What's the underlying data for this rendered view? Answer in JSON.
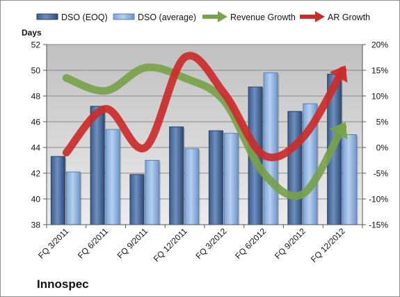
{
  "company_label": "Innospec",
  "chart_data": {
    "type": "bar",
    "categories": [
      "FQ 3/2011",
      "FQ 6/2011",
      "FQ 9/2011",
      "FQ 12/2011",
      "FQ 3/2012",
      "FQ 6/2012",
      "FQ 9/2012",
      "FQ 12/2012"
    ],
    "ylabel": "Days",
    "ylim": [
      38,
      52
    ],
    "yticks": [
      "38",
      "40",
      "42",
      "44",
      "46",
      "48",
      "50",
      "52"
    ],
    "y2lim": [
      -15,
      20
    ],
    "y2ticks": [
      "-15%",
      "-10%",
      "-5%",
      "0%",
      "5%",
      "10%",
      "15%",
      "20%"
    ],
    "legend_position": "top",
    "grid": true,
    "series": [
      {
        "name": "DSO (EOQ)",
        "kind": "bar",
        "axis": "left",
        "color": "#4f6f9f",
        "values": [
          43.3,
          47.2,
          41.9,
          45.6,
          45.3,
          48.7,
          46.8,
          49.7
        ]
      },
      {
        "name": "DSO (average)",
        "kind": "bar",
        "axis": "left",
        "color": "#8fb2e0",
        "values": [
          42.1,
          45.4,
          43.0,
          43.9,
          45.1,
          49.8,
          47.4,
          45.0
        ]
      },
      {
        "name": "Revenue Growth",
        "kind": "line",
        "axis": "right",
        "unit": "%",
        "color": "#77a14a",
        "values": [
          13.5,
          11,
          15.5,
          13.5,
          9,
          -5,
          -9,
          4
        ]
      },
      {
        "name": "AR Growth",
        "kind": "line",
        "axis": "right",
        "unit": "%",
        "color": "#cc2b2b",
        "values": [
          -1,
          7.5,
          0,
          17.5,
          10.5,
          -1.5,
          2,
          15
        ]
      }
    ]
  }
}
